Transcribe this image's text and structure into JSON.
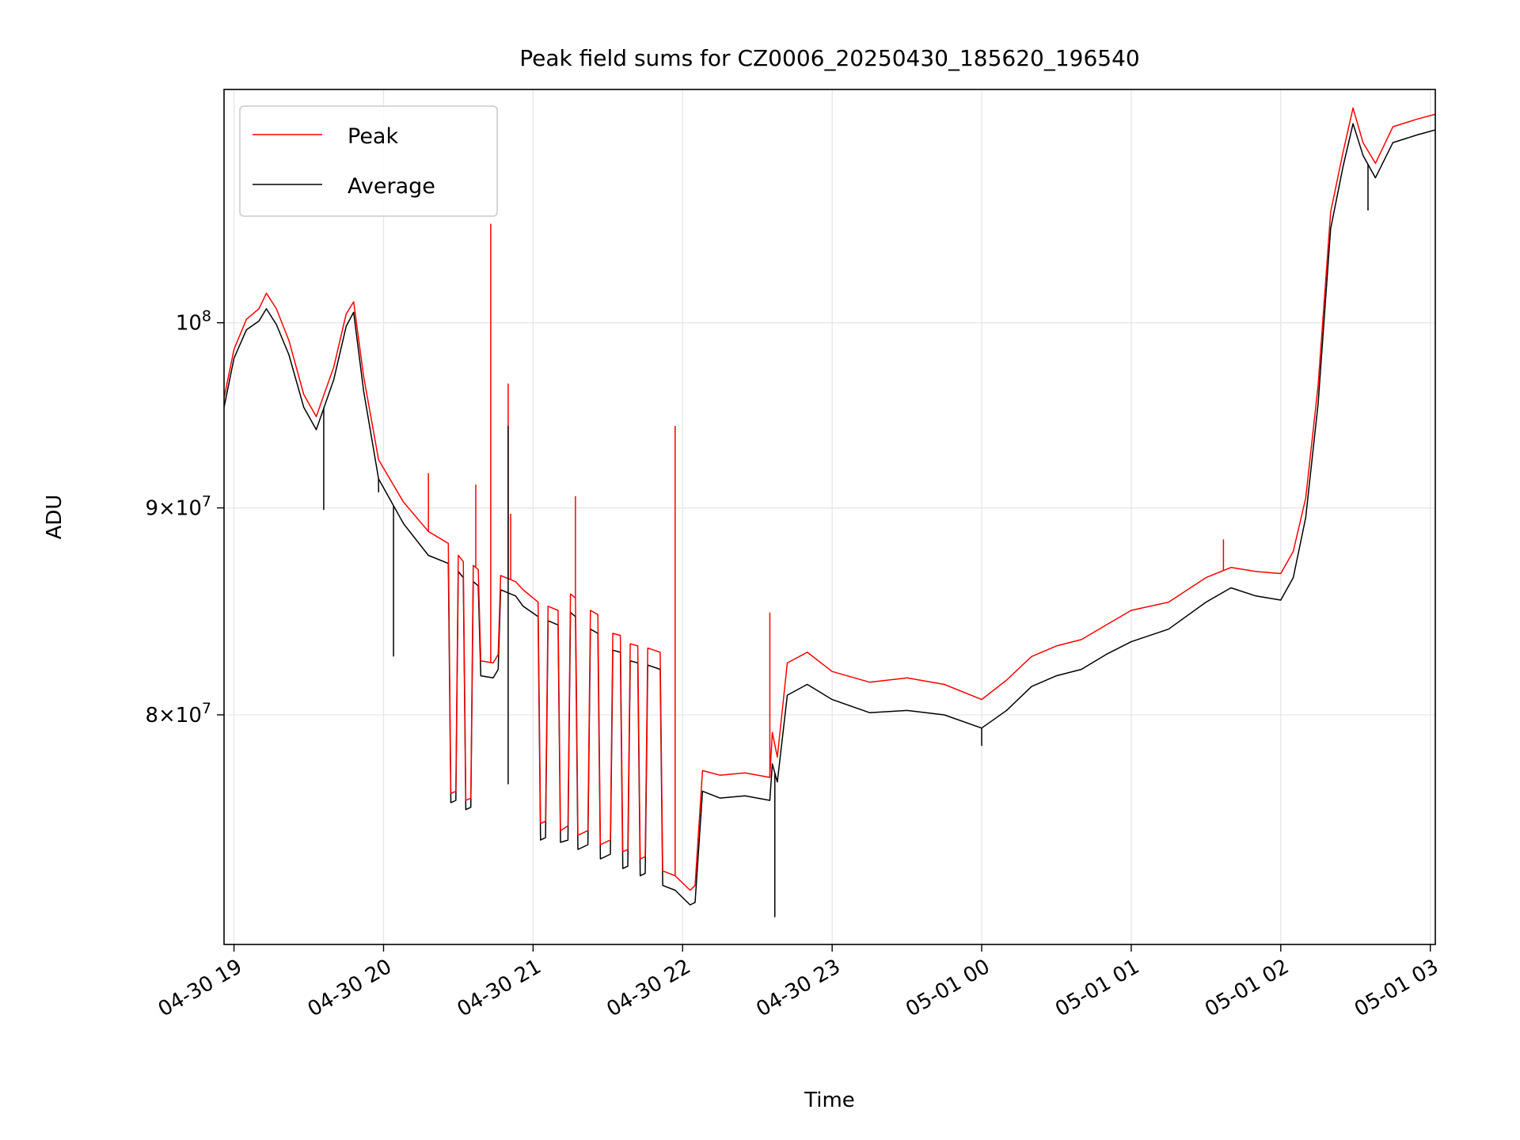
{
  "colors": {
    "peak": "#ff0000",
    "average": "#000000",
    "grid": "#e6e6e6"
  },
  "chart_data": {
    "type": "line",
    "title": "Peak field sums for CZ0006_20250430_185620_196540",
    "xlabel": "Time",
    "ylabel": "ADU",
    "y_scale": "log",
    "ylim": [
      70200000,
      114200000
    ],
    "xlim": [
      "2025-04-30 18:56",
      "2025-05-01 03:02"
    ],
    "grid": true,
    "legend_position": "upper left",
    "x_ticks": [
      {
        "t": "2025-04-30 19:00",
        "label": "04-30 19"
      },
      {
        "t": "2025-04-30 20:00",
        "label": "04-30 20"
      },
      {
        "t": "2025-04-30 21:00",
        "label": "04-30 21"
      },
      {
        "t": "2025-04-30 22:00",
        "label": "04-30 22"
      },
      {
        "t": "2025-04-30 23:00",
        "label": "04-30 23"
      },
      {
        "t": "2025-05-01 00:00",
        "label": "05-01 00"
      },
      {
        "t": "2025-05-01 01:00",
        "label": "05-01 01"
      },
      {
        "t": "2025-05-01 02:00",
        "label": "05-01 02"
      },
      {
        "t": "2025-05-01 03:00",
        "label": "05-01 03"
      }
    ],
    "y_ticks": [
      {
        "value": 80000000,
        "base": "8",
        "exp": "7",
        "kind": "times"
      },
      {
        "value": 90000000,
        "base": "9",
        "exp": "7",
        "kind": "times"
      },
      {
        "value": 100000000,
        "base": "10",
        "exp": "8",
        "kind": "power"
      }
    ],
    "series": [
      {
        "name": "Peak",
        "color": "#ff0000",
        "points": [
          [
            "2025-04-30 18:56",
            95800000
          ],
          [
            "2025-04-30 19:00",
            98500000
          ],
          [
            "2025-04-30 19:05",
            100200000
          ],
          [
            "2025-04-30 19:10",
            100800000
          ],
          [
            "2025-04-30 19:13",
            101700000
          ],
          [
            "2025-04-30 19:17",
            100800000
          ],
          [
            "2025-04-30 19:22",
            99000000
          ],
          [
            "2025-04-30 19:28",
            96000000
          ],
          [
            "2025-04-30 19:33",
            94800000
          ],
          [
            "2025-04-30 19:40",
            97500000
          ],
          [
            "2025-04-30 19:45",
            100500000
          ],
          [
            "2025-04-30 19:48",
            101200000
          ],
          [
            "2025-04-30 19:52",
            97000000
          ],
          [
            "2025-04-30 19:58",
            92500000
          ],
          [
            "2025-04-30 20:08",
            90300000
          ],
          [
            "2025-04-30 20:18",
            88800000
          ],
          [
            "2025-04-30 20:26",
            88200000
          ],
          [
            "2025-04-30 20:27",
            76500000
          ],
          [
            "2025-04-30 20:29",
            76600000
          ],
          [
            "2025-04-30 20:30",
            87600000
          ],
          [
            "2025-04-30 20:32",
            87300000
          ],
          [
            "2025-04-30 20:33",
            76200000
          ],
          [
            "2025-04-30 20:35",
            76300000
          ],
          [
            "2025-04-30 20:36",
            87100000
          ],
          [
            "2025-04-30 20:38",
            86900000
          ],
          [
            "2025-04-30 20:39",
            82500000
          ],
          [
            "2025-04-30 20:44",
            82400000
          ],
          [
            "2025-04-30 20:46",
            82800000
          ],
          [
            "2025-04-30 20:47",
            86600000
          ],
          [
            "2025-04-30 20:53",
            86300000
          ],
          [
            "2025-04-30 20:56",
            85900000
          ],
          [
            "2025-04-30 21:02",
            85300000
          ],
          [
            "2025-04-30 21:03",
            75200000
          ],
          [
            "2025-04-30 21:05",
            75300000
          ],
          [
            "2025-04-30 21:06",
            85100000
          ],
          [
            "2025-04-30 21:10",
            84900000
          ],
          [
            "2025-04-30 21:11",
            74900000
          ],
          [
            "2025-04-30 21:14",
            75100000
          ],
          [
            "2025-04-30 21:15",
            85700000
          ],
          [
            "2025-04-30 21:17",
            85500000
          ],
          [
            "2025-04-30 21:18",
            74700000
          ],
          [
            "2025-04-30 21:22",
            74900000
          ],
          [
            "2025-04-30 21:23",
            84900000
          ],
          [
            "2025-04-30 21:26",
            84700000
          ],
          [
            "2025-04-30 21:27",
            74300000
          ],
          [
            "2025-04-30 21:31",
            74500000
          ],
          [
            "2025-04-30 21:32",
            83800000
          ],
          [
            "2025-04-30 21:35",
            83700000
          ],
          [
            "2025-04-30 21:36",
            74000000
          ],
          [
            "2025-04-30 21:38",
            74100000
          ],
          [
            "2025-04-30 21:39",
            83300000
          ],
          [
            "2025-04-30 21:42",
            83200000
          ],
          [
            "2025-04-30 21:43",
            73700000
          ],
          [
            "2025-04-30 21:45",
            73800000
          ],
          [
            "2025-04-30 21:46",
            83100000
          ],
          [
            "2025-04-30 21:51",
            82900000
          ],
          [
            "2025-04-30 21:52",
            73200000
          ],
          [
            "2025-04-30 21:57",
            73000000
          ],
          [
            "2025-04-30 22:03",
            72400000
          ],
          [
            "2025-04-30 22:05",
            72600000
          ],
          [
            "2025-04-30 22:08",
            77500000
          ],
          [
            "2025-04-30 22:15",
            77300000
          ],
          [
            "2025-04-30 22:25",
            77400000
          ],
          [
            "2025-04-30 22:35",
            77200000
          ],
          [
            "2025-04-30 22:36",
            79200000
          ],
          [
            "2025-04-30 22:38",
            78100000
          ],
          [
            "2025-04-30 22:42",
            82400000
          ],
          [
            "2025-04-30 22:50",
            82900000
          ],
          [
            "2025-04-30 23:00",
            82000000
          ],
          [
            "2025-04-30 23:15",
            81500000
          ],
          [
            "2025-04-30 23:30",
            81700000
          ],
          [
            "2025-04-30 23:45",
            81400000
          ],
          [
            "2025-05-01 00:00",
            80700000
          ],
          [
            "2025-05-01 00:10",
            81600000
          ],
          [
            "2025-05-01 00:20",
            82700000
          ],
          [
            "2025-05-01 00:30",
            83200000
          ],
          [
            "2025-05-01 00:40",
            83500000
          ],
          [
            "2025-05-01 00:50",
            84200000
          ],
          [
            "2025-05-01 01:00",
            84900000
          ],
          [
            "2025-05-01 01:15",
            85300000
          ],
          [
            "2025-05-01 01:30",
            86500000
          ],
          [
            "2025-05-01 01:40",
            87000000
          ],
          [
            "2025-05-01 01:50",
            86800000
          ],
          [
            "2025-05-01 02:00",
            86700000
          ],
          [
            "2025-05-01 02:05",
            87800000
          ],
          [
            "2025-05-01 02:10",
            90500000
          ],
          [
            "2025-05-01 02:15",
            96500000
          ],
          [
            "2025-05-01 02:20",
            106500000
          ],
          [
            "2025-05-01 02:25",
            110200000
          ],
          [
            "2025-05-01 02:29",
            113000000
          ],
          [
            "2025-05-01 02:33",
            110800000
          ],
          [
            "2025-05-01 02:38",
            109500000
          ],
          [
            "2025-05-01 02:45",
            111800000
          ],
          [
            "2025-05-01 02:55",
            112300000
          ],
          [
            "2025-05-01 03:02",
            112600000
          ]
        ]
      },
      {
        "name": "Average",
        "color": "#000000",
        "points": [
          [
            "2025-04-30 18:56",
            95300000
          ],
          [
            "2025-04-30 19:00",
            98000000
          ],
          [
            "2025-04-30 19:05",
            99600000
          ],
          [
            "2025-04-30 19:10",
            100100000
          ],
          [
            "2025-04-30 19:13",
            100800000
          ],
          [
            "2025-04-30 19:17",
            99900000
          ],
          [
            "2025-04-30 19:22",
            98200000
          ],
          [
            "2025-04-30 19:28",
            95300000
          ],
          [
            "2025-04-30 19:33",
            94100000
          ],
          [
            "2025-04-30 19:40",
            96800000
          ],
          [
            "2025-04-30 19:45",
            99800000
          ],
          [
            "2025-04-30 19:48",
            100600000
          ],
          [
            "2025-04-30 19:52",
            96200000
          ],
          [
            "2025-04-30 19:58",
            91500000
          ],
          [
            "2025-04-30 20:08",
            89200000
          ],
          [
            "2025-04-30 20:18",
            87600000
          ],
          [
            "2025-04-30 20:26",
            87200000
          ],
          [
            "2025-04-30 20:27",
            76100000
          ],
          [
            "2025-04-30 20:29",
            76200000
          ],
          [
            "2025-04-30 20:30",
            86800000
          ],
          [
            "2025-04-30 20:32",
            86500000
          ],
          [
            "2025-04-30 20:33",
            75800000
          ],
          [
            "2025-04-30 20:35",
            75900000
          ],
          [
            "2025-04-30 20:36",
            86300000
          ],
          [
            "2025-04-30 20:38",
            86100000
          ],
          [
            "2025-04-30 20:39",
            81800000
          ],
          [
            "2025-04-30 20:44",
            81700000
          ],
          [
            "2025-04-30 20:46",
            82100000
          ],
          [
            "2025-04-30 20:47",
            85900000
          ],
          [
            "2025-04-30 20:53",
            85600000
          ],
          [
            "2025-04-30 20:56",
            85100000
          ],
          [
            "2025-04-30 21:02",
            84600000
          ],
          [
            "2025-04-30 21:03",
            74500000
          ],
          [
            "2025-04-30 21:05",
            74600000
          ],
          [
            "2025-04-30 21:06",
            84400000
          ],
          [
            "2025-04-30 21:10",
            84200000
          ],
          [
            "2025-04-30 21:11",
            74400000
          ],
          [
            "2025-04-30 21:14",
            74500000
          ],
          [
            "2025-04-30 21:15",
            84800000
          ],
          [
            "2025-04-30 21:17",
            84600000
          ],
          [
            "2025-04-30 21:18",
            74100000
          ],
          [
            "2025-04-30 21:22",
            74300000
          ],
          [
            "2025-04-30 21:23",
            84000000
          ],
          [
            "2025-04-30 21:26",
            83800000
          ],
          [
            "2025-04-30 21:27",
            73700000
          ],
          [
            "2025-04-30 21:31",
            73900000
          ],
          [
            "2025-04-30 21:32",
            83000000
          ],
          [
            "2025-04-30 21:35",
            82900000
          ],
          [
            "2025-04-30 21:36",
            73300000
          ],
          [
            "2025-04-30 21:38",
            73400000
          ],
          [
            "2025-04-30 21:39",
            82500000
          ],
          [
            "2025-04-30 21:42",
            82400000
          ],
          [
            "2025-04-30 21:43",
            73000000
          ],
          [
            "2025-04-30 21:45",
            73100000
          ],
          [
            "2025-04-30 21:46",
            82300000
          ],
          [
            "2025-04-30 21:51",
            82100000
          ],
          [
            "2025-04-30 21:52",
            72600000
          ],
          [
            "2025-04-30 21:57",
            72400000
          ],
          [
            "2025-04-30 22:03",
            71800000
          ],
          [
            "2025-04-30 22:05",
            71900000
          ],
          [
            "2025-04-30 22:08",
            76600000
          ],
          [
            "2025-04-30 22:15",
            76300000
          ],
          [
            "2025-04-30 22:25",
            76400000
          ],
          [
            "2025-04-30 22:35",
            76200000
          ],
          [
            "2025-04-30 22:36",
            77800000
          ],
          [
            "2025-04-30 22:38",
            77000000
          ],
          [
            "2025-04-30 22:42",
            80900000
          ],
          [
            "2025-04-30 22:50",
            81400000
          ],
          [
            "2025-04-30 23:00",
            80700000
          ],
          [
            "2025-04-30 23:15",
            80100000
          ],
          [
            "2025-04-30 23:30",
            80200000
          ],
          [
            "2025-04-30 23:45",
            80000000
          ],
          [
            "2025-05-01 00:00",
            79400000
          ],
          [
            "2025-05-01 00:10",
            80200000
          ],
          [
            "2025-05-01 00:20",
            81300000
          ],
          [
            "2025-05-01 00:30",
            81800000
          ],
          [
            "2025-05-01 00:40",
            82100000
          ],
          [
            "2025-05-01 00:50",
            82800000
          ],
          [
            "2025-05-01 01:00",
            83400000
          ],
          [
            "2025-05-01 01:15",
            84000000
          ],
          [
            "2025-05-01 01:30",
            85300000
          ],
          [
            "2025-05-01 01:40",
            86000000
          ],
          [
            "2025-05-01 01:50",
            85600000
          ],
          [
            "2025-05-01 02:00",
            85400000
          ],
          [
            "2025-05-01 02:05",
            86500000
          ],
          [
            "2025-05-01 02:10",
            89500000
          ],
          [
            "2025-05-01 02:15",
            95500000
          ],
          [
            "2025-05-01 02:20",
            105500000
          ],
          [
            "2025-05-01 02:25",
            109300000
          ],
          [
            "2025-05-01 02:29",
            112000000
          ],
          [
            "2025-05-01 02:33",
            110000000
          ],
          [
            "2025-05-01 02:38",
            108600000
          ],
          [
            "2025-05-01 02:45",
            110800000
          ],
          [
            "2025-05-01 02:55",
            111300000
          ],
          [
            "2025-05-01 03:02",
            111600000
          ]
        ]
      }
    ],
    "spikes": [
      {
        "series": "Peak",
        "t": "2025-04-30 20:18",
        "value": 91800000
      },
      {
        "series": "Peak",
        "t": "2025-04-30 20:37",
        "value": 91200000
      },
      {
        "series": "Peak",
        "t": "2025-04-30 20:43",
        "value": 105800000
      },
      {
        "series": "Peak",
        "t": "2025-04-30 20:50",
        "value": 96600000
      },
      {
        "series": "Peak",
        "t": "2025-04-30 20:51",
        "value": 89700000
      },
      {
        "series": "Peak",
        "t": "2025-04-30 21:17",
        "value": 90600000
      },
      {
        "series": "Peak",
        "t": "2025-04-30 21:57",
        "value": 94300000
      },
      {
        "series": "Peak",
        "t": "2025-04-30 22:35",
        "value": 84800000
      },
      {
        "series": "Peak",
        "t": "2025-05-01 01:37",
        "value": 88400000
      },
      {
        "series": "Average",
        "t": "2025-04-30 19:36",
        "value": 89900000
      },
      {
        "series": "Average",
        "t": "2025-04-30 19:58",
        "value": 90800000
      },
      {
        "series": "Average",
        "t": "2025-04-30 20:04",
        "value": 82700000
      },
      {
        "series": "Average",
        "t": "2025-04-30 20:50",
        "value": 94300000
      },
      {
        "series": "Average",
        "t": "2025-04-30 20:50",
        "value": 76900000
      },
      {
        "series": "Average",
        "t": "2025-04-30 22:37",
        "value": 71300000
      },
      {
        "series": "Average",
        "t": "2025-05-01 00:00",
        "value": 78600000
      },
      {
        "series": "Average",
        "t": "2025-05-01 02:35",
        "value": 106600000
      }
    ]
  }
}
